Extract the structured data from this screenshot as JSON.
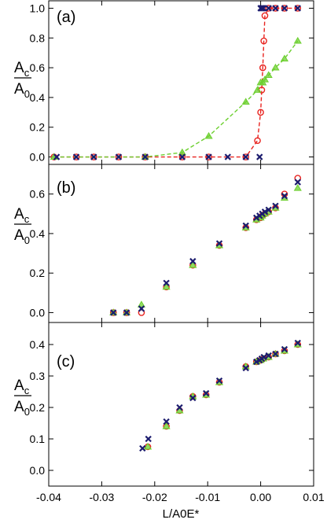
{
  "chart_data": [
    {
      "type": "scatter",
      "panel_label": "(a)",
      "ylabel_numerator": "A",
      "ylabel_numerator_sub": "c",
      "ylabel_denominator": "A",
      "ylabel_denominator_sub": "0",
      "xlim": [
        -0.04,
        0.01
      ],
      "ylim": [
        -0.05,
        1.05
      ],
      "yticks": [
        0.0,
        0.2,
        0.4,
        0.6,
        0.8,
        1.0
      ],
      "ytick_labels": [
        "0.0",
        "0.2",
        "0.4",
        "0.6",
        "0.8",
        "1.0"
      ],
      "series": [
        {
          "marker": "circle",
          "color": "#e8231f",
          "line": "dashed",
          "x": [
            -0.039,
            -0.0348,
            -0.0315,
            -0.0268,
            -0.0218,
            -0.0148,
            -0.0098,
            -0.0028,
            -0.0006,
            0.0,
            0.0002,
            0.0004,
            0.0006,
            0.0008,
            0.0015,
            0.0028,
            0.0045,
            0.007
          ],
          "y": [
            0.0,
            0.0,
            0.0,
            0.0,
            0.0,
            0.0,
            0.0,
            0.0,
            0.11,
            0.3,
            0.45,
            0.6,
            0.78,
            0.95,
            1.0,
            1.0,
            1.0,
            1.0
          ]
        },
        {
          "marker": "triangle",
          "color": "#6ccf2f",
          "line": "dashed",
          "x": [
            -0.039,
            -0.0218,
            -0.0148,
            -0.0098,
            -0.0028,
            -0.0006,
            0.0,
            0.0004,
            0.0008,
            0.0015,
            0.0028,
            0.0045,
            0.007
          ],
          "y": [
            0.0,
            0.0,
            0.03,
            0.14,
            0.37,
            0.45,
            0.5,
            0.5,
            0.52,
            0.55,
            0.6,
            0.66,
            0.78
          ]
        },
        {
          "marker": "x",
          "color": "#1c1c6e",
          "line": "none",
          "x": [
            -0.0385,
            -0.0348,
            -0.0315,
            -0.0268,
            -0.0218,
            -0.0148,
            -0.0098,
            -0.0062,
            -0.0028,
            -0.0002,
            0.0,
            0.0001,
            0.0003,
            0.0005,
            0.0015,
            0.0028,
            0.0045,
            0.007
          ],
          "y": [
            0.0,
            0.0,
            0.0,
            0.0,
            0.0,
            0.0,
            0.0,
            0.0,
            0.0,
            0.0,
            1.0,
            1.0,
            1.0,
            1.0,
            1.0,
            1.0,
            1.0,
            1.0
          ]
        }
      ]
    },
    {
      "type": "scatter",
      "panel_label": "(b)",
      "ylabel_numerator": "A",
      "ylabel_numerator_sub": "c",
      "ylabel_denominator": "A",
      "ylabel_denominator_sub": "0",
      "xlim": [
        -0.04,
        0.01
      ],
      "ylim": [
        -0.05,
        0.75
      ],
      "yticks": [
        0.0,
        0.2,
        0.4,
        0.6
      ],
      "ytick_labels": [
        "0.0",
        "0.2",
        "0.4",
        "0.6"
      ],
      "series": [
        {
          "marker": "circle",
          "color": "#e8231f",
          "line": "none",
          "x": [
            -0.0278,
            -0.0253,
            -0.0225,
            -0.0178,
            -0.0128,
            -0.0078,
            -0.0028,
            -0.0008,
            0.0,
            0.0003,
            0.0008,
            0.0015,
            0.0028,
            0.0045,
            0.007
          ],
          "y": [
            0.0,
            0.0,
            0.0,
            0.13,
            0.24,
            0.34,
            0.43,
            0.47,
            0.48,
            0.49,
            0.5,
            0.51,
            0.53,
            0.6,
            0.68
          ]
        },
        {
          "marker": "triangle",
          "color": "#6ccf2f",
          "line": "none",
          "x": [
            -0.0278,
            -0.0253,
            -0.0225,
            -0.0178,
            -0.0128,
            -0.0078,
            -0.0028,
            -0.0008,
            0.0,
            0.0003,
            0.0008,
            0.0015,
            0.0028,
            0.0045,
            0.007
          ],
          "y": [
            0.0,
            0.0,
            0.04,
            0.13,
            0.24,
            0.34,
            0.43,
            0.47,
            0.48,
            0.49,
            0.5,
            0.51,
            0.53,
            0.58,
            0.63
          ]
        },
        {
          "marker": "x",
          "color": "#1c1c6e",
          "line": "none",
          "x": [
            -0.0278,
            -0.0253,
            -0.0225,
            -0.0178,
            -0.0128,
            -0.0078,
            -0.0028,
            -0.0008,
            -0.0002,
            0.0003,
            0.0008,
            0.0015,
            0.0028,
            0.0045,
            0.007
          ],
          "y": [
            0.0,
            0.0,
            0.02,
            0.15,
            0.26,
            0.35,
            0.44,
            0.48,
            0.49,
            0.5,
            0.51,
            0.52,
            0.54,
            0.59,
            0.66
          ]
        }
      ]
    },
    {
      "type": "scatter",
      "panel_label": "(c)",
      "ylabel_numerator": "A",
      "ylabel_numerator_sub": "c",
      "ylabel_denominator": "A",
      "ylabel_denominator_sub": "0",
      "xlabel": "L/A0E*",
      "xlim": [
        -0.04,
        0.01
      ],
      "ylim": [
        -0.05,
        0.47
      ],
      "xticks": [
        -0.04,
        -0.03,
        -0.02,
        -0.01,
        0.0,
        0.01
      ],
      "xtick_labels": [
        "-0.04",
        "-0.03",
        "-0.02",
        "-0.01",
        "0.00",
        "0.01"
      ],
      "yticks": [
        0.0,
        0.1,
        0.2,
        0.3,
        0.4
      ],
      "ytick_labels": [
        "0.0",
        "0.1",
        "0.2",
        "0.3",
        "0.4"
      ],
      "series": [
        {
          "marker": "circle",
          "color": "#e8231f",
          "line": "none",
          "x": [
            -0.0213,
            -0.0178,
            -0.0153,
            -0.0128,
            -0.0103,
            -0.0078,
            -0.0028,
            -0.0008,
            0.0,
            0.0005,
            0.0015,
            0.0028,
            0.0045,
            0.007
          ],
          "y": [
            0.075,
            0.14,
            0.19,
            0.235,
            0.24,
            0.28,
            0.33,
            0.345,
            0.35,
            0.355,
            0.36,
            0.37,
            0.38,
            0.4
          ]
        },
        {
          "marker": "triangle",
          "color": "#6ccf2f",
          "line": "none",
          "x": [
            -0.0213,
            -0.0178,
            -0.0153,
            -0.0128,
            -0.0103,
            -0.0078,
            -0.0028,
            -0.0008,
            0.0,
            0.0005,
            0.0015,
            0.0028,
            0.0045,
            0.007
          ],
          "y": [
            0.075,
            0.14,
            0.19,
            0.235,
            0.24,
            0.28,
            0.33,
            0.345,
            0.35,
            0.355,
            0.36,
            0.37,
            0.38,
            0.4
          ]
        },
        {
          "marker": "x",
          "color": "#1c1c6e",
          "line": "none",
          "x": [
            -0.0223,
            -0.0212,
            -0.0178,
            -0.0153,
            -0.0128,
            -0.0103,
            -0.0078,
            -0.0028,
            -0.0008,
            -0.0002,
            0.0002,
            0.0006,
            0.0015,
            0.0028,
            0.0045,
            0.007
          ],
          "y": [
            0.07,
            0.1,
            0.155,
            0.2,
            0.23,
            0.245,
            0.285,
            0.325,
            0.345,
            0.35,
            0.355,
            0.36,
            0.365,
            0.37,
            0.385,
            0.405
          ]
        }
      ]
    }
  ]
}
